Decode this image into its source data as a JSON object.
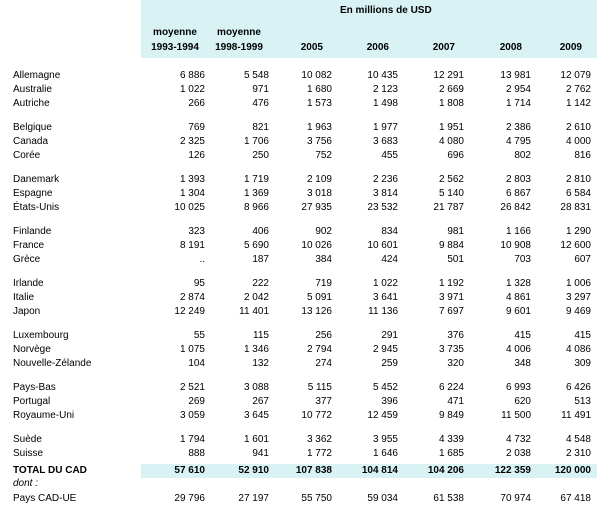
{
  "header": {
    "title": "En millions de USD",
    "columns": [
      {
        "top": "moyenne",
        "label": "1993-1994"
      },
      {
        "top": "moyenne",
        "label": "1998-1999"
      },
      {
        "label": "2005"
      },
      {
        "label": "2006"
      },
      {
        "label": "2007"
      },
      {
        "label": "2008"
      },
      {
        "label": "2009"
      }
    ]
  },
  "groups": [
    {
      "rows": [
        {
          "label": "Allemagne",
          "cells": [
            "6 886",
            "5 548",
            "10 082",
            "10 435",
            "12 291",
            "13 981",
            "12 079"
          ]
        },
        {
          "label": "Australie",
          "cells": [
            "1 022",
            "971",
            "1 680",
            "2 123",
            "2 669",
            "2 954",
            "2 762"
          ]
        },
        {
          "label": "Autriche",
          "cells": [
            "266",
            "476",
            "1 573",
            "1 498",
            "1 808",
            "1 714",
            "1 142"
          ]
        }
      ]
    },
    {
      "rows": [
        {
          "label": "Belgique",
          "cells": [
            "769",
            "821",
            "1 963",
            "1 977",
            "1 951",
            "2 386",
            "2 610"
          ]
        },
        {
          "label": "Canada",
          "cells": [
            "2 325",
            "1 706",
            "3 756",
            "3 683",
            "4 080",
            "4 795",
            "4 000"
          ]
        },
        {
          "label": "Corée",
          "cells": [
            "126",
            "250",
            "752",
            "455",
            "696",
            "802",
            "816"
          ]
        }
      ]
    },
    {
      "rows": [
        {
          "label": "Danemark",
          "cells": [
            "1 393",
            "1 719",
            "2 109",
            "2 236",
            "2 562",
            "2 803",
            "2 810"
          ]
        },
        {
          "label": "Espagne",
          "cells": [
            "1 304",
            "1 369",
            "3 018",
            "3 814",
            "5 140",
            "6 867",
            "6 584"
          ]
        },
        {
          "label": "États-Unis",
          "cells": [
            "10 025",
            "8 966",
            "27 935",
            "23 532",
            "21 787",
            "26 842",
            "28 831"
          ]
        }
      ]
    },
    {
      "rows": [
        {
          "label": "Finlande",
          "cells": [
            "323",
            "406",
            "902",
            "834",
            "981",
            "1 166",
            "1 290"
          ]
        },
        {
          "label": "France",
          "cells": [
            "8 191",
            "5 690",
            "10 026",
            "10 601",
            "9 884",
            "10 908",
            "12 600"
          ]
        },
        {
          "label": "Grèce",
          "cells": [
            "..",
            "187",
            "384",
            "424",
            "501",
            "703",
            "607"
          ]
        }
      ]
    },
    {
      "rows": [
        {
          "label": "Irlande",
          "cells": [
            "95",
            "222",
            "719",
            "1 022",
            "1 192",
            "1 328",
            "1 006"
          ]
        },
        {
          "label": "Italie",
          "cells": [
            "2 874",
            "2 042",
            "5 091",
            "3 641",
            "3 971",
            "4 861",
            "3 297"
          ]
        },
        {
          "label": "Japon",
          "cells": [
            "12 249",
            "11 401",
            "13 126",
            "11 136",
            "7 697",
            "9 601",
            "9 469"
          ]
        }
      ]
    },
    {
      "rows": [
        {
          "label": "Luxembourg",
          "cells": [
            "55",
            "115",
            "256",
            "291",
            "376",
            "415",
            "415"
          ]
        },
        {
          "label": "Norvège",
          "cells": [
            "1 075",
            "1 346",
            "2 794",
            "2 945",
            "3 735",
            "4 006",
            "4 086"
          ]
        },
        {
          "label": "Nouvelle-Zélande",
          "cells": [
            "104",
            "132",
            "274",
            "259",
            "320",
            "348",
            "309"
          ]
        }
      ]
    },
    {
      "rows": [
        {
          "label": "Pays-Bas",
          "cells": [
            "2 521",
            "3 088",
            "5 115",
            "5 452",
            "6 224",
            "6 993",
            "6 426"
          ]
        },
        {
          "label": "Portugal",
          "cells": [
            "269",
            "267",
            "377",
            "396",
            "471",
            "620",
            "513"
          ]
        },
        {
          "label": "Royaume-Uni",
          "cells": [
            "3 059",
            "3 645",
            "10 772",
            "12 459",
            "9 849",
            "11 500",
            "11 491"
          ]
        }
      ]
    },
    {
      "rows": [
        {
          "label": "Suède",
          "cells": [
            "1 794",
            "1 601",
            "3 362",
            "3 955",
            "4 339",
            "4 732",
            "4 548"
          ]
        },
        {
          "label": "Suisse",
          "cells": [
            "888",
            "941",
            "1 772",
            "1 646",
            "1 685",
            "2 038",
            "2 310"
          ]
        }
      ]
    }
  ],
  "total": {
    "label": "TOTAL DU CAD",
    "cells": [
      "57 610",
      "52 910",
      "107 838",
      "104 814",
      "104 206",
      "122 359",
      "120 000"
    ]
  },
  "note": "dont :",
  "subtotal": {
    "label": "Pays CAD-UE",
    "cells": [
      "29 796",
      "27 197",
      "55 750",
      "59 034",
      "61 538",
      "70 974",
      "67 418"
    ]
  }
}
